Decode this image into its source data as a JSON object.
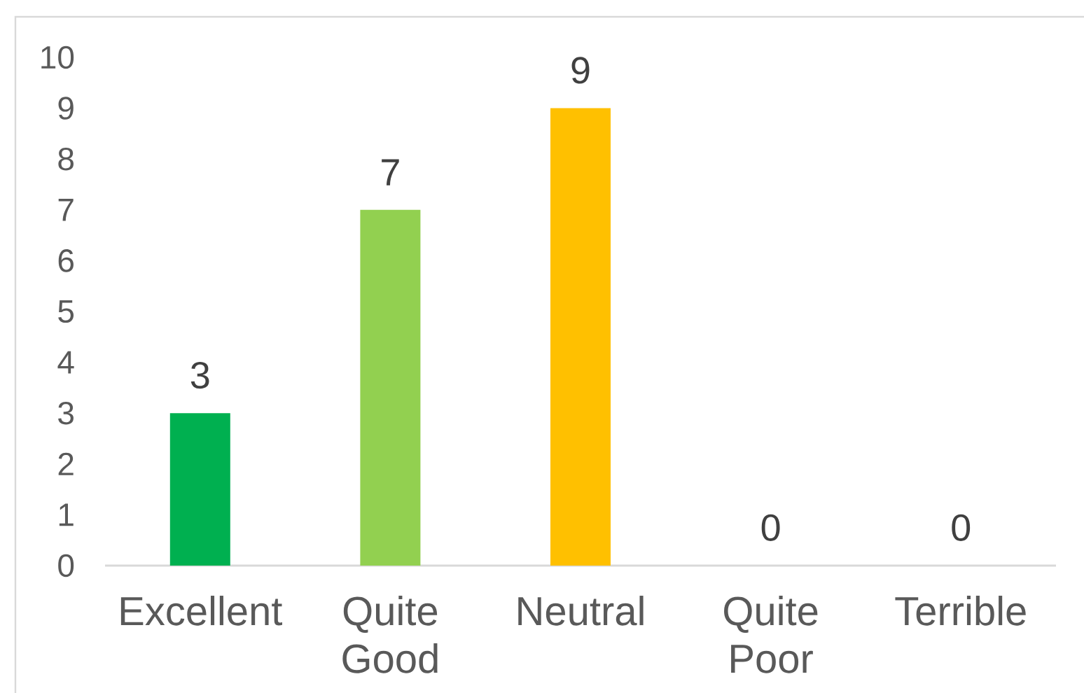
{
  "chart_data": {
    "type": "bar",
    "categories": [
      "Excellent",
      "Quite Good",
      "Neutral",
      "Quite Poor",
      "Terrible"
    ],
    "values": [
      3,
      7,
      9,
      0,
      0
    ],
    "colors": [
      "#00b050",
      "#92d050",
      "#ffc000",
      null,
      null
    ],
    "ylim": [
      0,
      10
    ],
    "yticks": [
      0,
      1,
      2,
      3,
      4,
      5,
      6,
      7,
      8,
      9,
      10
    ],
    "data_labels": true
  }
}
